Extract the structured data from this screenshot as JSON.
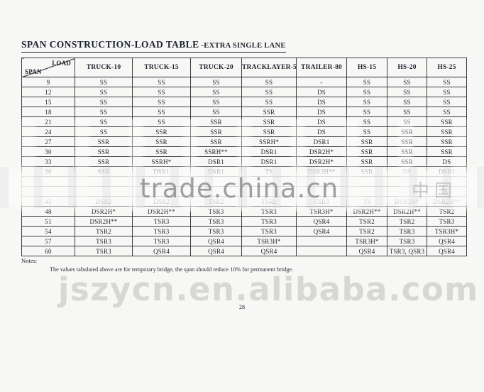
{
  "page": {
    "title_main": "SPAN CONSTRUCTION-LOAD TABLE",
    "title_suffix": "-EXTRA SINGLE LANE",
    "page_number": "28"
  },
  "table": {
    "corner": {
      "top_label": "LOAD",
      "bottom_label": "SPAN"
    },
    "columns": [
      "TRUCK-10",
      "TRUCK-15",
      "TRUCK-20",
      "TRACKLAYER-50",
      "TRAILER-80",
      "HS-15",
      "HS-20",
      "HS-25"
    ],
    "rows": [
      {
        "span": "9",
        "values": [
          "SS",
          "SS",
          "SS",
          "SS",
          "-",
          "SS",
          "SS",
          "SS"
        ]
      },
      {
        "span": "12",
        "values": [
          "SS",
          "SS",
          "SS",
          "SS",
          "DS",
          "SS",
          "SS",
          "SS"
        ]
      },
      {
        "span": "15",
        "values": [
          "SS",
          "SS",
          "SS",
          "SS",
          "DS",
          "SS",
          "SS",
          "SS"
        ]
      },
      {
        "span": "18",
        "values": [
          "SS",
          "SS",
          "SS",
          "SSR",
          "DS",
          "SS",
          "SS",
          "SS"
        ]
      },
      {
        "span": "21",
        "values": [
          "SS",
          "SS",
          "SSR",
          "SSR",
          "DS",
          "SS",
          "SS",
          "SSR"
        ]
      },
      {
        "span": "24",
        "values": [
          "SS",
          "SSR",
          "SSR",
          "SSR",
          "DS",
          "SS",
          "SSR",
          "SSR"
        ]
      },
      {
        "span": "27",
        "values": [
          "SSR",
          "SSR",
          "SSR",
          "SSRH*",
          "DSR1",
          "SSR",
          "SSR",
          "SSR"
        ]
      },
      {
        "span": "30",
        "values": [
          "SSR",
          "SSR",
          "SSRH**",
          "DSR1",
          "DSR2H*",
          "SSR",
          "SSR",
          "SSR"
        ]
      },
      {
        "span": "33",
        "values": [
          "SSR",
          "SSRH*",
          "DSR1",
          "DSR1",
          "DSR2H*",
          "SSR",
          "SSR",
          "DS"
        ]
      },
      {
        "span": "36",
        "values": [
          "SSR",
          "DSR1",
          "DSR1",
          "TS",
          "DSR2H**",
          "SSR",
          "DS",
          "DSR1"
        ]
      },
      {
        "span": "",
        "values": [
          "",
          "",
          "",
          "",
          "",
          "",
          "",
          ""
        ],
        "obscured": true
      },
      {
        "span": "",
        "values": [
          "",
          "",
          "",
          "",
          "",
          "",
          "",
          ""
        ],
        "obscured": true
      },
      {
        "span": "45",
        "values": [
          "DSR2",
          "DSR2",
          "TSR2",
          "TSR2",
          "TSR3",
          "TS",
          "DSR2H*",
          "DSR2H**"
        ]
      },
      {
        "span": "48",
        "values": [
          "DSR2H*",
          "DSR2H**",
          "TSR3",
          "TSR3",
          "TSR3H*",
          "DSR2H**",
          "DSR2H**",
          "TSR2"
        ]
      },
      {
        "span": "51",
        "values": [
          "DSR2H**",
          "TSR3",
          "TSR3",
          "TSR3",
          "QSR4",
          "TSR2",
          "TSR2",
          "TSR3"
        ]
      },
      {
        "span": "54",
        "values": [
          "TSR2",
          "TSR3",
          "TSR3",
          "TSR3",
          "QSR4",
          "TSR2",
          "TSR3",
          "TSR3H*"
        ]
      },
      {
        "span": "57",
        "values": [
          "TSR3",
          "TSR3",
          "QSR4",
          "TSR3H*",
          "",
          "TSR3H*",
          "TSR3",
          "QSR4"
        ]
      },
      {
        "span": "60",
        "values": [
          "TSR3",
          "QSR4",
          "QSR4",
          "QSR4",
          "",
          "QSR4",
          "TSR3, QSR3",
          "QSR4"
        ]
      }
    ]
  },
  "notes": {
    "heading": "Notes:",
    "line": "The values tabulated above are for temporary bridge, the span should reduce 10% for permanent bridge."
  },
  "watermarks": {
    "center": "trade.china.cn",
    "center_cjk": "中国",
    "bottom": "jszycn.en.alibaba.com"
  },
  "colors": {
    "page_background": "#f7f7f5",
    "text": "#1d212e",
    "table_border": "#3c3e44",
    "watermark_gray": "#7a7b80",
    "watermark_light_gray": "#9e9ea0"
  }
}
